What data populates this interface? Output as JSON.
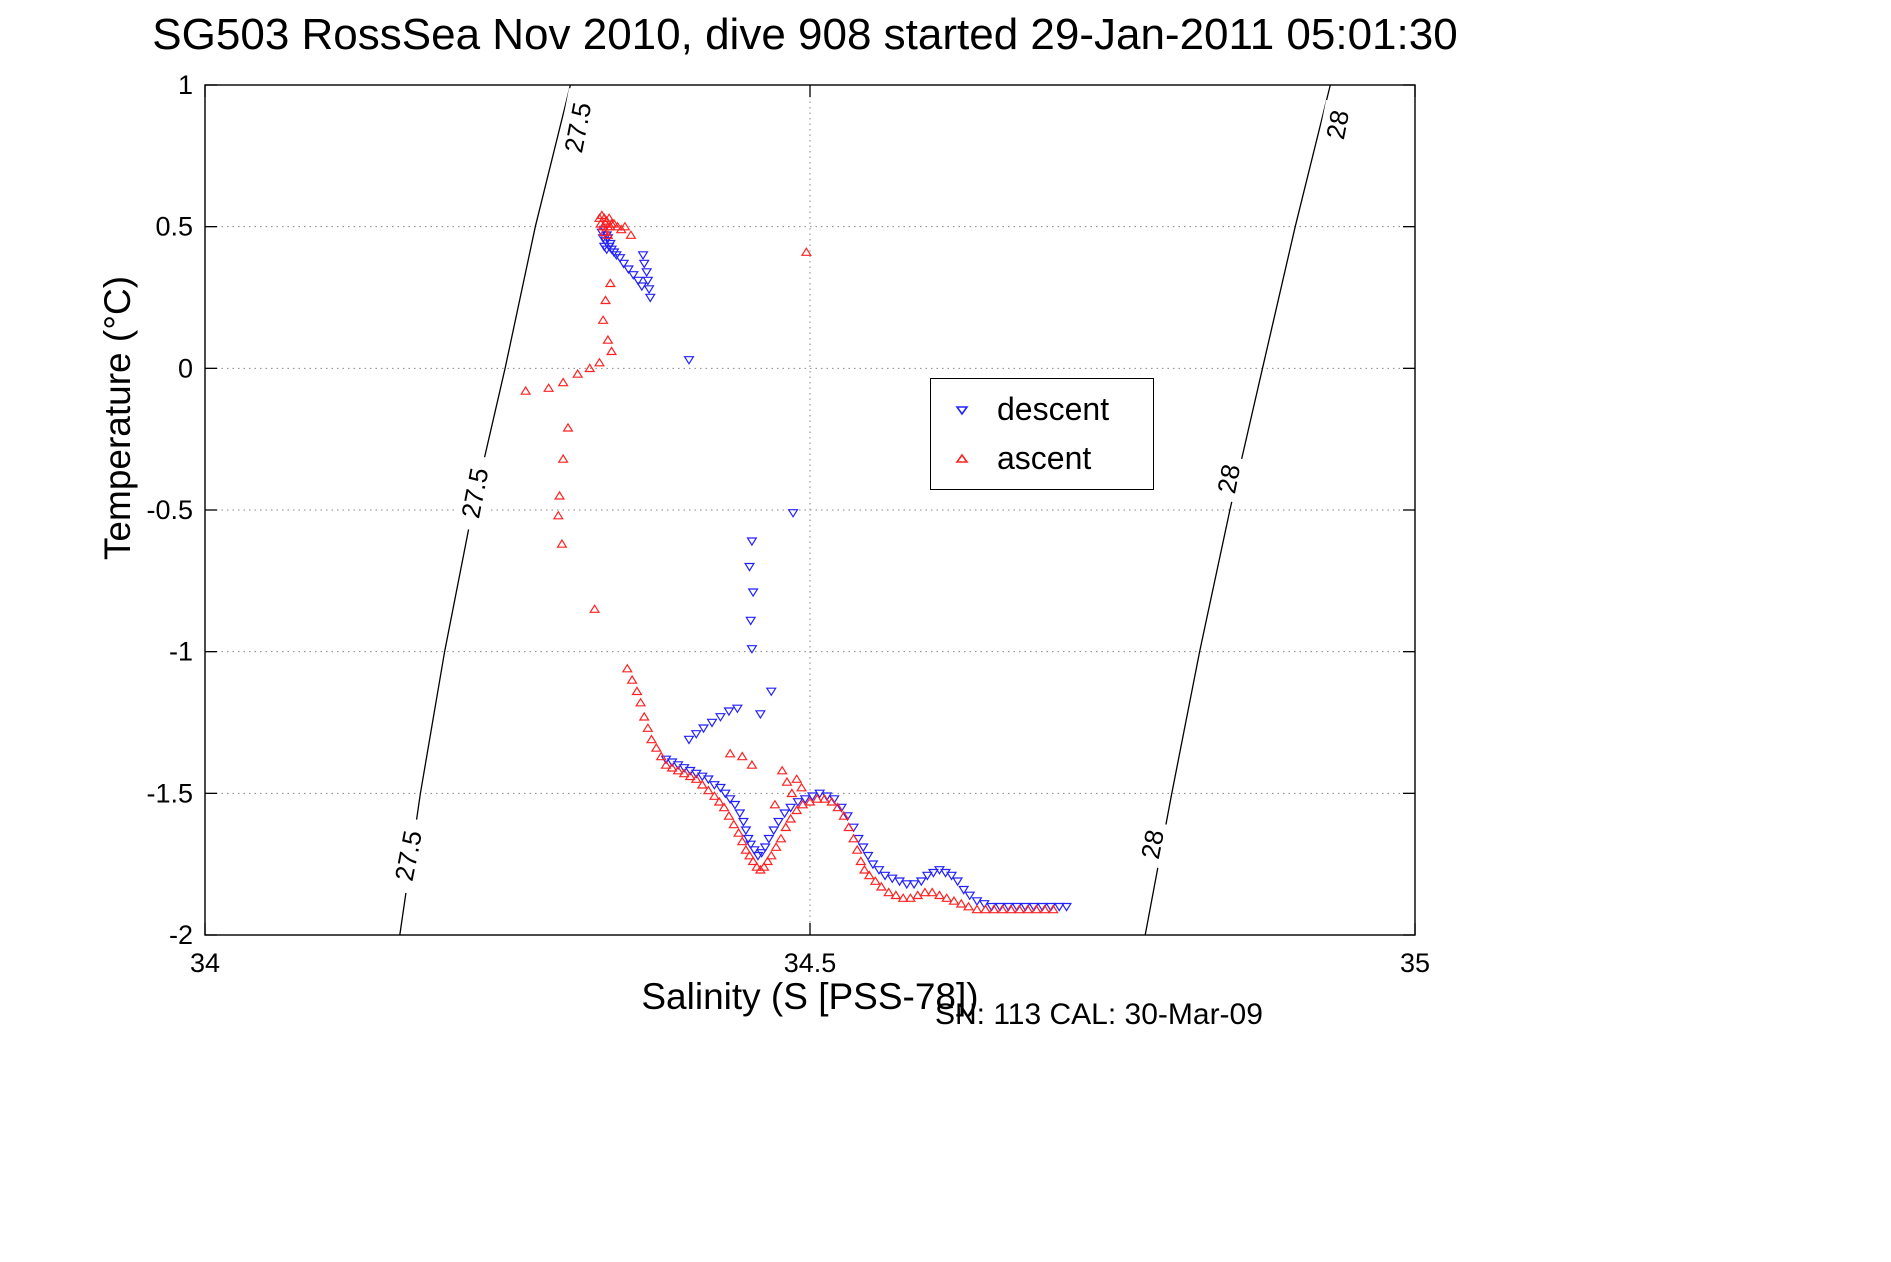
{
  "chart_data": {
    "type": "scatter",
    "title": "SG503 RossSea Nov 2010, dive 908 started 29-Jan-2011 05:01:30",
    "xlabel": "Salinity (S [PSS-78])",
    "ylabel": "Temperature (°C)",
    "footnote": "SN: 113  CAL: 30-Mar-09",
    "xlim": [
      34,
      35
    ],
    "ylim": [
      -2,
      1
    ],
    "xtick_values": [
      34,
      34.5,
      35
    ],
    "xtick_labels": [
      "34",
      "34.5",
      "35"
    ],
    "ytick_values": [
      1,
      0.5,
      0,
      -0.5,
      -1,
      -1.5,
      -2
    ],
    "ytick_labels": [
      "1",
      "0.5",
      "0",
      "-0.5",
      "-1",
      "-1.5",
      "-2"
    ],
    "grid": "dotted",
    "legend_position": "upper-right-inside",
    "series": [
      {
        "name": "descent",
        "marker": "triangle-down",
        "color": "#2222ff",
        "points": [
          [
            34.328,
            0.48
          ],
          [
            34.33,
            0.49
          ],
          [
            34.332,
            0.47
          ],
          [
            34.329,
            0.46
          ],
          [
            34.331,
            0.45
          ],
          [
            34.333,
            0.46
          ],
          [
            34.335,
            0.44
          ],
          [
            34.33,
            0.43
          ],
          [
            34.332,
            0.42
          ],
          [
            34.334,
            0.43
          ],
          [
            34.336,
            0.42
          ],
          [
            34.338,
            0.41
          ],
          [
            34.34,
            0.4
          ],
          [
            34.343,
            0.39
          ],
          [
            34.346,
            0.37
          ],
          [
            34.35,
            0.35
          ],
          [
            34.354,
            0.33
          ],
          [
            34.358,
            0.31
          ],
          [
            34.361,
            0.29
          ],
          [
            34.362,
            0.4
          ],
          [
            34.363,
            0.37
          ],
          [
            34.365,
            0.34
          ],
          [
            34.366,
            0.31
          ],
          [
            34.367,
            0.28
          ],
          [
            34.368,
            0.25
          ],
          [
            34.4,
            0.03
          ],
          [
            34.486,
            -0.51
          ],
          [
            34.452,
            -0.61
          ],
          [
            34.45,
            -0.7
          ],
          [
            34.453,
            -0.79
          ],
          [
            34.451,
            -0.89
          ],
          [
            34.452,
            -0.99
          ],
          [
            34.468,
            -1.14
          ],
          [
            34.459,
            -1.22
          ],
          [
            34.4,
            -1.31
          ],
          [
            34.406,
            -1.29
          ],
          [
            34.412,
            -1.27
          ],
          [
            34.419,
            -1.25
          ],
          [
            34.426,
            -1.23
          ],
          [
            34.433,
            -1.21
          ],
          [
            34.44,
            -1.2
          ],
          [
            34.381,
            -1.38
          ],
          [
            34.386,
            -1.39
          ],
          [
            34.391,
            -1.4
          ],
          [
            34.396,
            -1.41
          ],
          [
            34.401,
            -1.42
          ],
          [
            34.406,
            -1.43
          ],
          [
            34.411,
            -1.44
          ],
          [
            34.416,
            -1.45
          ],
          [
            34.421,
            -1.47
          ],
          [
            34.426,
            -1.48
          ],
          [
            34.43,
            -1.5
          ],
          [
            34.434,
            -1.52
          ],
          [
            34.438,
            -1.54
          ],
          [
            34.442,
            -1.57
          ],
          [
            34.445,
            -1.6
          ],
          [
            34.447,
            -1.63
          ],
          [
            34.449,
            -1.66
          ],
          [
            34.451,
            -1.68
          ],
          [
            34.454,
            -1.7
          ],
          [
            34.457,
            -1.72
          ],
          [
            34.46,
            -1.71
          ],
          [
            34.463,
            -1.69
          ],
          [
            34.466,
            -1.66
          ],
          [
            34.47,
            -1.63
          ],
          [
            34.474,
            -1.6
          ],
          [
            34.479,
            -1.57
          ],
          [
            34.484,
            -1.55
          ],
          [
            34.49,
            -1.53
          ],
          [
            34.496,
            -1.52
          ],
          [
            34.502,
            -1.51
          ],
          [
            34.508,
            -1.5
          ],
          [
            34.514,
            -1.51
          ],
          [
            34.52,
            -1.52
          ],
          [
            34.526,
            -1.55
          ],
          [
            34.531,
            -1.58
          ],
          [
            34.536,
            -1.62
          ],
          [
            34.54,
            -1.66
          ],
          [
            34.544,
            -1.69
          ],
          [
            34.548,
            -1.72
          ],
          [
            34.552,
            -1.75
          ],
          [
            34.557,
            -1.77
          ],
          [
            34.562,
            -1.79
          ],
          [
            34.568,
            -1.8
          ],
          [
            34.574,
            -1.81
          ],
          [
            34.58,
            -1.82
          ],
          [
            34.586,
            -1.82
          ],
          [
            34.592,
            -1.81
          ],
          [
            34.597,
            -1.79
          ],
          [
            34.602,
            -1.78
          ],
          [
            34.607,
            -1.77
          ],
          [
            34.612,
            -1.78
          ],
          [
            34.617,
            -1.79
          ],
          [
            34.622,
            -1.81
          ],
          [
            34.627,
            -1.84
          ],
          [
            34.632,
            -1.86
          ],
          [
            34.638,
            -1.88
          ],
          [
            34.644,
            -1.89
          ],
          [
            34.65,
            -1.9
          ],
          [
            34.657,
            -1.9
          ],
          [
            34.664,
            -1.9
          ],
          [
            34.671,
            -1.9
          ],
          [
            34.678,
            -1.9
          ],
          [
            34.685,
            -1.9
          ],
          [
            34.692,
            -1.9
          ],
          [
            34.699,
            -1.9
          ],
          [
            34.706,
            -1.9
          ],
          [
            34.712,
            -1.9
          ]
        ]
      },
      {
        "name": "ascent",
        "marker": "triangle-up",
        "color": "#ff2222",
        "points": [
          [
            34.326,
            0.53
          ],
          [
            34.328,
            0.54
          ],
          [
            34.33,
            0.53
          ],
          [
            34.332,
            0.52
          ],
          [
            34.334,
            0.53
          ],
          [
            34.336,
            0.51
          ],
          [
            34.327,
            0.51
          ],
          [
            34.329,
            0.5
          ],
          [
            34.331,
            0.51
          ],
          [
            34.333,
            0.5
          ],
          [
            34.335,
            0.5
          ],
          [
            34.338,
            0.51
          ],
          [
            34.341,
            0.5
          ],
          [
            34.344,
            0.49
          ],
          [
            34.347,
            0.5
          ],
          [
            34.33,
            0.48
          ],
          [
            34.333,
            0.47
          ],
          [
            34.352,
            0.47
          ],
          [
            34.335,
            0.3
          ],
          [
            34.331,
            0.24
          ],
          [
            34.329,
            0.17
          ],
          [
            34.333,
            0.1
          ],
          [
            34.336,
            0.06
          ],
          [
            34.326,
            0.02
          ],
          [
            34.318,
            0.0
          ],
          [
            34.308,
            -0.02
          ],
          [
            34.296,
            -0.05
          ],
          [
            34.284,
            -0.07
          ],
          [
            34.265,
            -0.08
          ],
          [
            34.3,
            -0.21
          ],
          [
            34.296,
            -0.32
          ],
          [
            34.293,
            -0.45
          ],
          [
            34.292,
            -0.52
          ],
          [
            34.295,
            -0.62
          ],
          [
            34.322,
            -0.85
          ],
          [
            34.349,
            -1.06
          ],
          [
            34.497,
            0.41
          ],
          [
            34.434,
            -1.36
          ],
          [
            34.444,
            -1.37
          ],
          [
            34.452,
            -1.4
          ],
          [
            34.477,
            -1.42
          ],
          [
            34.481,
            -1.46
          ],
          [
            34.485,
            -1.5
          ],
          [
            34.471,
            -1.54
          ],
          [
            34.489,
            -1.45
          ],
          [
            34.493,
            -1.48
          ],
          [
            34.353,
            -1.1
          ],
          [
            34.357,
            -1.14
          ],
          [
            34.36,
            -1.18
          ],
          [
            34.363,
            -1.23
          ],
          [
            34.366,
            -1.27
          ],
          [
            34.369,
            -1.31
          ],
          [
            34.373,
            -1.34
          ],
          [
            34.377,
            -1.37
          ],
          [
            34.381,
            -1.4
          ],
          [
            34.386,
            -1.41
          ],
          [
            34.391,
            -1.42
          ],
          [
            34.396,
            -1.43
          ],
          [
            34.401,
            -1.44
          ],
          [
            34.406,
            -1.45
          ],
          [
            34.411,
            -1.47
          ],
          [
            34.416,
            -1.49
          ],
          [
            34.421,
            -1.51
          ],
          [
            34.425,
            -1.53
          ],
          [
            34.429,
            -1.55
          ],
          [
            34.433,
            -1.58
          ],
          [
            34.437,
            -1.61
          ],
          [
            34.441,
            -1.64
          ],
          [
            34.444,
            -1.67
          ],
          [
            34.447,
            -1.7
          ],
          [
            34.45,
            -1.72
          ],
          [
            34.453,
            -1.74
          ],
          [
            34.456,
            -1.76
          ],
          [
            34.459,
            -1.77
          ],
          [
            34.462,
            -1.76
          ],
          [
            34.465,
            -1.74
          ],
          [
            34.468,
            -1.72
          ],
          [
            34.472,
            -1.69
          ],
          [
            34.476,
            -1.66
          ],
          [
            34.48,
            -1.62
          ],
          [
            34.484,
            -1.59
          ],
          [
            34.489,
            -1.56
          ],
          [
            34.494,
            -1.54
          ],
          [
            34.5,
            -1.53
          ],
          [
            34.506,
            -1.52
          ],
          [
            34.512,
            -1.52
          ],
          [
            34.518,
            -1.53
          ],
          [
            34.523,
            -1.55
          ],
          [
            34.528,
            -1.58
          ],
          [
            34.532,
            -1.62
          ],
          [
            34.536,
            -1.66
          ],
          [
            34.539,
            -1.7
          ],
          [
            34.542,
            -1.74
          ],
          [
            34.545,
            -1.77
          ],
          [
            34.549,
            -1.79
          ],
          [
            34.554,
            -1.81
          ],
          [
            34.559,
            -1.83
          ],
          [
            34.565,
            -1.85
          ],
          [
            34.571,
            -1.86
          ],
          [
            34.577,
            -1.87
          ],
          [
            34.583,
            -1.87
          ],
          [
            34.589,
            -1.86
          ],
          [
            34.595,
            -1.85
          ],
          [
            34.601,
            -1.85
          ],
          [
            34.607,
            -1.86
          ],
          [
            34.613,
            -1.87
          ],
          [
            34.619,
            -1.88
          ],
          [
            34.625,
            -1.89
          ],
          [
            34.631,
            -1.9
          ],
          [
            34.638,
            -1.91
          ],
          [
            34.645,
            -1.91
          ],
          [
            34.652,
            -1.91
          ],
          [
            34.659,
            -1.91
          ],
          [
            34.666,
            -1.91
          ],
          [
            34.673,
            -1.91
          ],
          [
            34.68,
            -1.91
          ],
          [
            34.687,
            -1.91
          ],
          [
            34.694,
            -1.91
          ],
          [
            34.701,
            -1.91
          ]
        ]
      }
    ],
    "contours": [
      {
        "label": "27.5",
        "points": [
          [
            34.302,
            1.0
          ],
          [
            34.273,
            0.5
          ],
          [
            34.248,
            0.0
          ],
          [
            34.221,
            -0.5
          ],
          [
            34.198,
            -1.0
          ],
          [
            34.178,
            -1.5
          ],
          [
            34.161,
            -2.0
          ]
        ],
        "label_positions": [
          [
            34.308,
            0.85
          ],
          [
            34.223,
            -0.44
          ],
          [
            34.168,
            -1.72
          ]
        ]
      },
      {
        "label": "28",
        "points": [
          [
            34.93,
            1.0
          ],
          [
            34.901,
            0.5
          ],
          [
            34.874,
            0.0
          ],
          [
            34.847,
            -0.5
          ],
          [
            34.822,
            -1.0
          ],
          [
            34.799,
            -1.5
          ],
          [
            34.777,
            -2.0
          ]
        ],
        "label_positions": [
          [
            34.936,
            0.86
          ],
          [
            34.846,
            -0.39
          ],
          [
            34.783,
            -1.68
          ]
        ]
      }
    ]
  }
}
